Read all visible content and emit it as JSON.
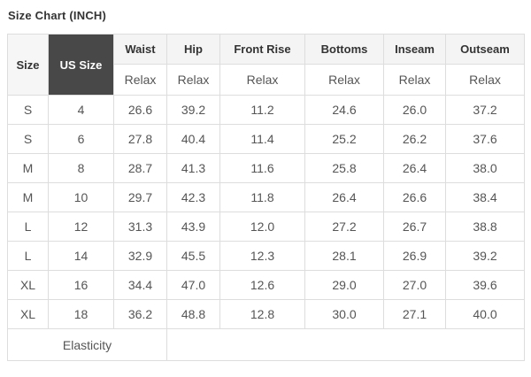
{
  "title": "Size Chart (INCH)",
  "table": {
    "corner_header": "Size",
    "us_size_header": "US Size",
    "measure_headers": [
      "Waist",
      "Hip",
      "Front Rise",
      "Bottoms",
      "Inseam",
      "Outseam"
    ],
    "fit_label": "Relax",
    "rows": [
      {
        "size": "S",
        "us_size": "4",
        "values": [
          "26.6",
          "39.2",
          "11.2",
          "24.6",
          "26.0",
          "37.2"
        ]
      },
      {
        "size": "S",
        "us_size": "6",
        "values": [
          "27.8",
          "40.4",
          "11.4",
          "25.2",
          "26.2",
          "37.6"
        ]
      },
      {
        "size": "M",
        "us_size": "8",
        "values": [
          "28.7",
          "41.3",
          "11.6",
          "25.8",
          "26.4",
          "38.0"
        ]
      },
      {
        "size": "M",
        "us_size": "10",
        "values": [
          "29.7",
          "42.3",
          "11.8",
          "26.4",
          "26.6",
          "38.4"
        ]
      },
      {
        "size": "L",
        "us_size": "12",
        "values": [
          "31.3",
          "43.9",
          "12.0",
          "27.2",
          "26.7",
          "38.8"
        ]
      },
      {
        "size": "L",
        "us_size": "14",
        "values": [
          "32.9",
          "45.5",
          "12.3",
          "28.1",
          "26.9",
          "39.2"
        ]
      },
      {
        "size": "XL",
        "us_size": "16",
        "values": [
          "34.4",
          "47.0",
          "12.6",
          "29.0",
          "27.0",
          "39.6"
        ]
      },
      {
        "size": "XL",
        "us_size": "18",
        "values": [
          "36.2",
          "48.8",
          "12.8",
          "30.0",
          "27.1",
          "40.0"
        ]
      }
    ],
    "footer_label": "Elasticity",
    "footer_value": ""
  },
  "colors": {
    "us_size_bg": "#484848",
    "us_size_text": "#ffffff",
    "header_bg": "#f4f4f4",
    "header_text": "#333333",
    "body_text": "#555555",
    "border": "#dddddd",
    "row_bg": "#ffffff"
  },
  "chart_data": {
    "type": "table",
    "title": "Size Chart (INCH)",
    "columns": [
      "Size",
      "US Size",
      "Waist (Relax)",
      "Hip (Relax)",
      "Front Rise (Relax)",
      "Bottoms (Relax)",
      "Inseam (Relax)",
      "Outseam (Relax)"
    ],
    "rows": [
      [
        "S",
        4,
        26.6,
        39.2,
        11.2,
        24.6,
        26.0,
        37.2
      ],
      [
        "S",
        6,
        27.8,
        40.4,
        11.4,
        25.2,
        26.2,
        37.6
      ],
      [
        "M",
        8,
        28.7,
        41.3,
        11.6,
        25.8,
        26.4,
        38.0
      ],
      [
        "M",
        10,
        29.7,
        42.3,
        11.8,
        26.4,
        26.6,
        38.4
      ],
      [
        "L",
        12,
        31.3,
        43.9,
        12.0,
        27.2,
        26.7,
        38.8
      ],
      [
        "L",
        14,
        32.9,
        45.5,
        12.3,
        28.1,
        26.9,
        39.2
      ],
      [
        "XL",
        16,
        34.4,
        47.0,
        12.6,
        29.0,
        27.0,
        39.6
      ],
      [
        "XL",
        18,
        36.2,
        48.8,
        12.8,
        30.0,
        27.1,
        40.0
      ]
    ],
    "footer_row": [
      "Elasticity",
      "",
      "",
      "",
      "",
      "",
      "",
      ""
    ],
    "layout": "header spans two rows: measurement name over fit type 'Relax'; footer label spans first 3 columns"
  }
}
